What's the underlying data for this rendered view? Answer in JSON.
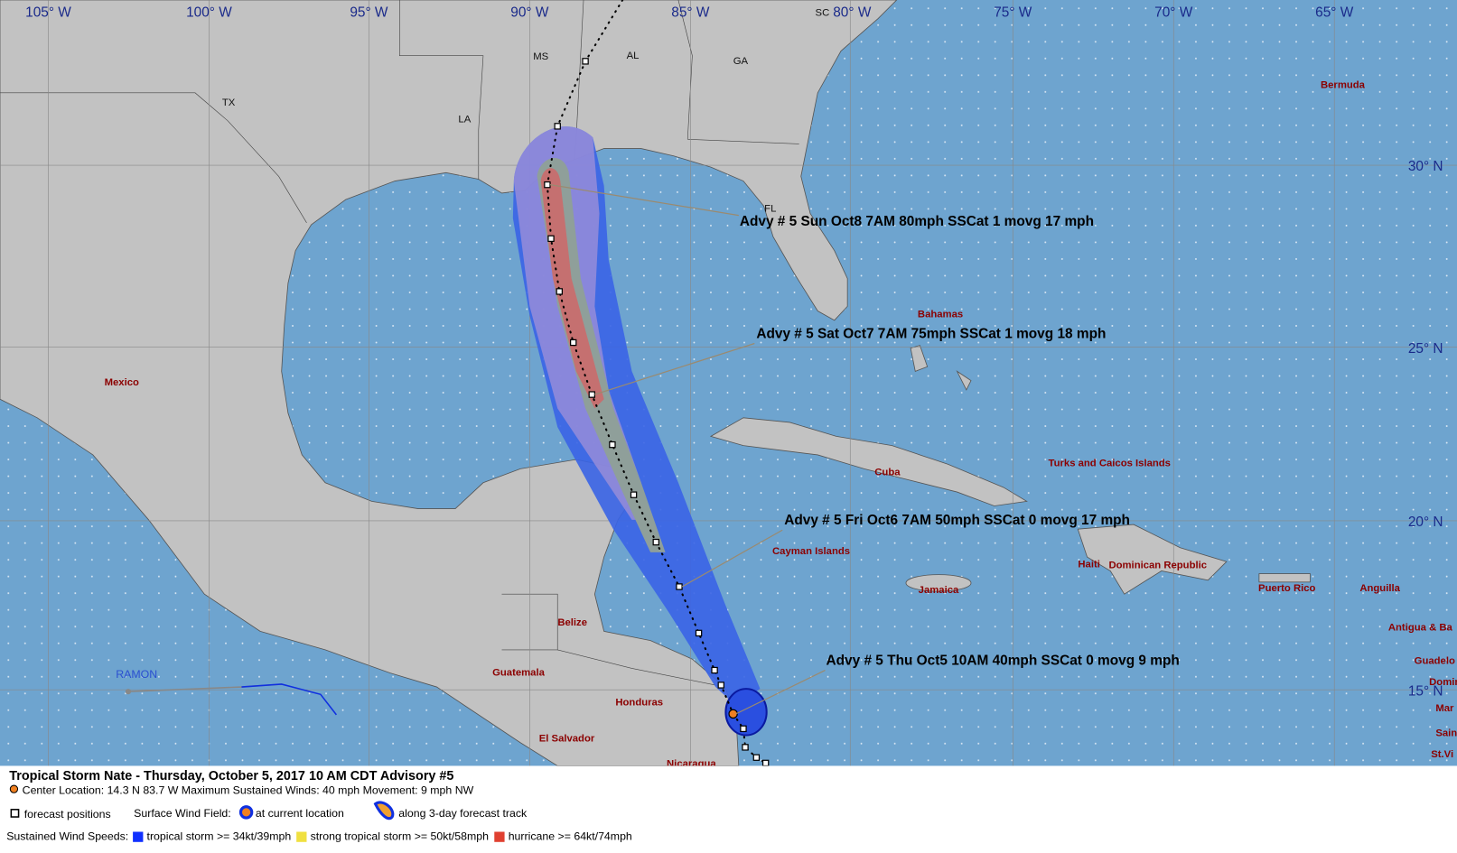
{
  "header": {
    "longitudes": [
      "105° W",
      "100° W",
      "95° W",
      "90° W",
      "85° W",
      "80° W",
      "75° W",
      "70° W",
      "65° W"
    ],
    "latitudes": [
      "30° N",
      "25° N",
      "20° N",
      "15° N"
    ]
  },
  "states": [
    "TX",
    "LA",
    "MS",
    "AL",
    "GA",
    "SC",
    "FL"
  ],
  "places": [
    "Mexico",
    "Bermuda",
    "Bahamas",
    "Cuba",
    "Turks and Caicos Islands",
    "Cayman Islands",
    "Haiti",
    "Dominican Republic",
    "Jamaica",
    "Puerto Rico",
    "Anguilla",
    "Antigua & Ba",
    "Guadelo",
    "Domin",
    "Mar",
    "Sain",
    "St.Vi",
    "Belize",
    "Guatemala",
    "Honduras",
    "El Salvador",
    "Nicaragua"
  ],
  "storms": [
    "RAMON"
  ],
  "advisories": [
    "Advy # 5 Sun Oct8 7AM  80mph SSCat 1 movg 17 mph",
    "Advy # 5 Sat Oct7 7AM  75mph SSCat 1 movg 18 mph",
    "Advy # 5 Fri Oct6 7AM  50mph SSCat 0 movg 17 mph",
    "Advy # 5 Thu Oct5 10AM  40mph SSCat 0 movg 9 mph"
  ],
  "legend": {
    "title": "Tropical Storm Nate  -  Thursday, October 5, 2017  10 AM CDT   Advisory #5",
    "center": "Center Location: 14.3 N  83.7 W   Maximum Sustained Winds: 40 mph   Movement: 9 mph NW",
    "forecast_positions": "forecast positions",
    "surface_wind_field": "Surface Wind Field:",
    "current_location": "at current location",
    "along_track": "along 3-day forecast track",
    "sustained_wind_speeds": "Sustained Wind Speeds:",
    "tropical_storm": "tropical storm >= 34kt/39mph",
    "strong_tropical_storm": "strong tropical storm >= 50kt/58mph",
    "hurricane": "hurricane >= 64kt/74mph"
  }
}
